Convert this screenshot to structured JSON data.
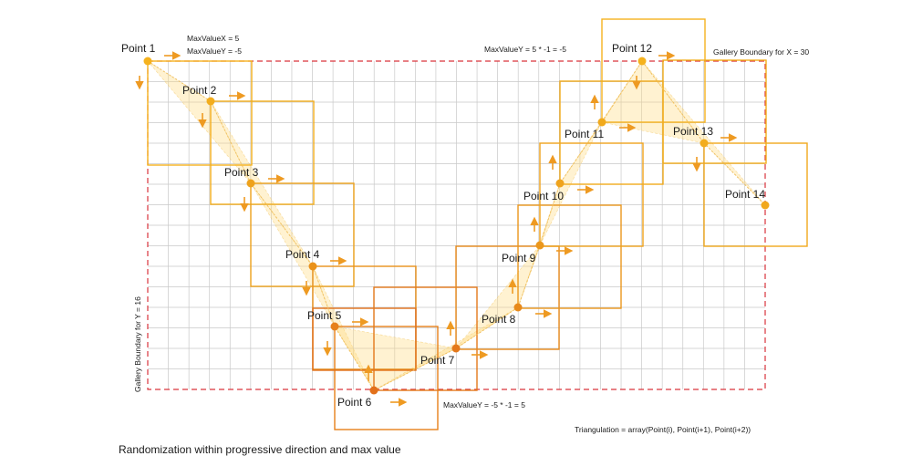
{
  "points": [
    {
      "label": "Point 1",
      "color": "#f5b21e"
    },
    {
      "label": "Point 2",
      "color": "#f3ad1d"
    },
    {
      "label": "Point 3",
      "color": "#eea21c"
    },
    {
      "label": "Point 4",
      "color": "#ea921b"
    },
    {
      "label": "Point 5",
      "color": "#e6801a"
    },
    {
      "label": "Point 6",
      "color": "#e2701a"
    },
    {
      "label": "Point 7",
      "color": "#e4791b"
    },
    {
      "label": "Point 8",
      "color": "#e88a1b"
    },
    {
      "label": "Point 9",
      "color": "#eb971c"
    },
    {
      "label": "Point 10",
      "color": "#efa31d"
    },
    {
      "label": "Point 11",
      "color": "#f1aa1d"
    },
    {
      "label": "Point 12",
      "color": "#f5b21e"
    },
    {
      "label": "Point 13",
      "color": "#f3ad1d"
    },
    {
      "label": "Point 14",
      "color": "#f1a81c"
    }
  ],
  "annotations": {
    "max_x": "MaxValueX = 5",
    "max_y_left": "MaxValueY = -5",
    "max_y_top": "MaxValueY = 5 * -1 = -5",
    "gallery_x": "Gallery Boundary for X = 30",
    "gallery_y": "Gallery Boundary for Y = 16",
    "max_y_bottom": "MaxValueY = -5 * -1 = 5",
    "triangulation": "Triangulation = array(Point(i), Point(i+1), Point(i+2))"
  },
  "caption": "Randomization within progressive direction and max value",
  "colors": {
    "boundary": "#d9343c",
    "grid": "#c9c9c9",
    "fill": "#ffd97a"
  }
}
